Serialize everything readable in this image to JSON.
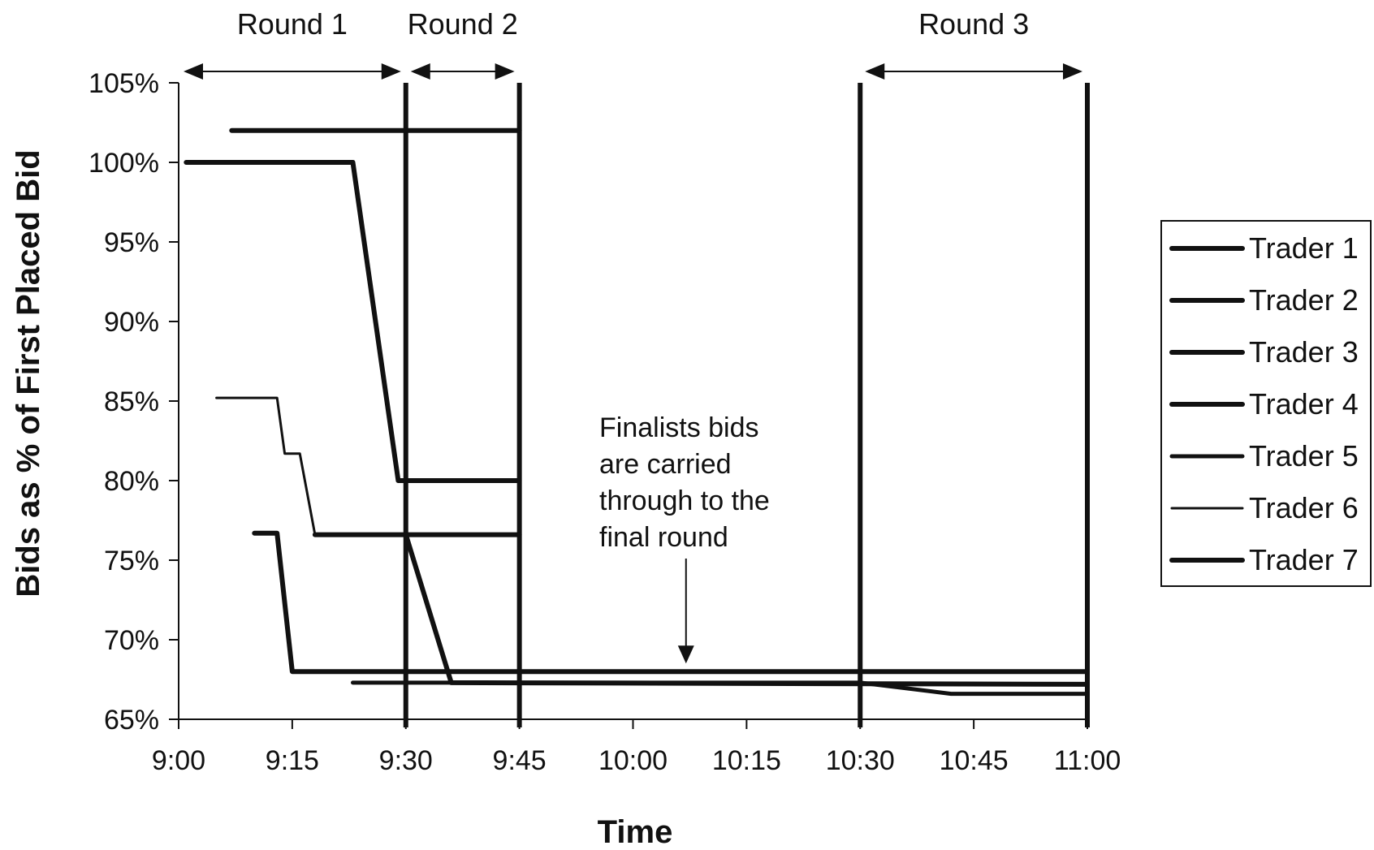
{
  "chart_data": {
    "type": "line",
    "title": "",
    "xlabel": "Time",
    "ylabel": "Bids as % of First Placed Bid",
    "x_ticks": [
      "9:00",
      "9:15",
      "9:30",
      "9:45",
      "10:00",
      "10:15",
      "10:30",
      "10:45",
      "11:00"
    ],
    "y_ticks": [
      "65%",
      "70%",
      "75%",
      "80%",
      "85%",
      "90%",
      "95%",
      "100%",
      "105%"
    ],
    "xlim": [
      "9:00",
      "11:00"
    ],
    "ylim": [
      65,
      105
    ],
    "grid": false,
    "legend_position": "right",
    "rounds": [
      {
        "label": "Round 1",
        "start": "9:00",
        "end": "9:30"
      },
      {
        "label": "Round 2",
        "start": "9:30",
        "end": "9:45"
      },
      {
        "label": "Round 3",
        "start": "10:30",
        "end": "11:00"
      }
    ],
    "round_boundaries": [
      "9:30",
      "9:45",
      "10:30",
      "11:00"
    ],
    "annotation": {
      "lines": [
        "Finalists bids",
        "are carried",
        "through to the",
        "final round"
      ],
      "arrow_target": {
        "x": "10:07",
        "y": 68.0
      }
    },
    "series": [
      {
        "name": "Trader 1",
        "points": [
          [
            "9:01",
            100
          ],
          [
            "9:23",
            100
          ],
          [
            "9:29",
            80
          ],
          [
            "9:45",
            80
          ]
        ]
      },
      {
        "name": "Trader 2",
        "points": [
          [
            "9:07",
            102
          ],
          [
            "9:45",
            102
          ]
        ]
      },
      {
        "name": "Trader 3",
        "points": [
          [
            "9:10",
            76.7
          ],
          [
            "9:13",
            76.7
          ],
          [
            "9:15",
            68
          ],
          [
            "11:00",
            68
          ]
        ]
      },
      {
        "name": "Trader 4",
        "points": [
          [
            "9:18",
            76.6
          ],
          [
            "9:30",
            76.6
          ],
          [
            "9:36",
            67.3
          ],
          [
            "11:00",
            67.2
          ]
        ]
      },
      {
        "name": "Trader 5",
        "points": [
          [
            "9:23",
            67.3
          ],
          [
            "10:30",
            67.3
          ],
          [
            "10:42",
            66.6
          ],
          [
            "11:00",
            66.6
          ]
        ]
      },
      {
        "name": "Trader 6",
        "points": [
          [
            "9:05",
            85.2
          ],
          [
            "9:13",
            85.2
          ],
          [
            "9:14",
            81.7
          ],
          [
            "9:16",
            81.7
          ],
          [
            "9:18",
            76.6
          ],
          [
            "9:45",
            76.6
          ]
        ]
      },
      {
        "name": "Trader 7",
        "points": [
          [
            "9:30",
            76.6
          ],
          [
            "9:45",
            76.6
          ]
        ]
      }
    ]
  },
  "colors": {
    "line": "#111111",
    "background": "#ffffff"
  }
}
